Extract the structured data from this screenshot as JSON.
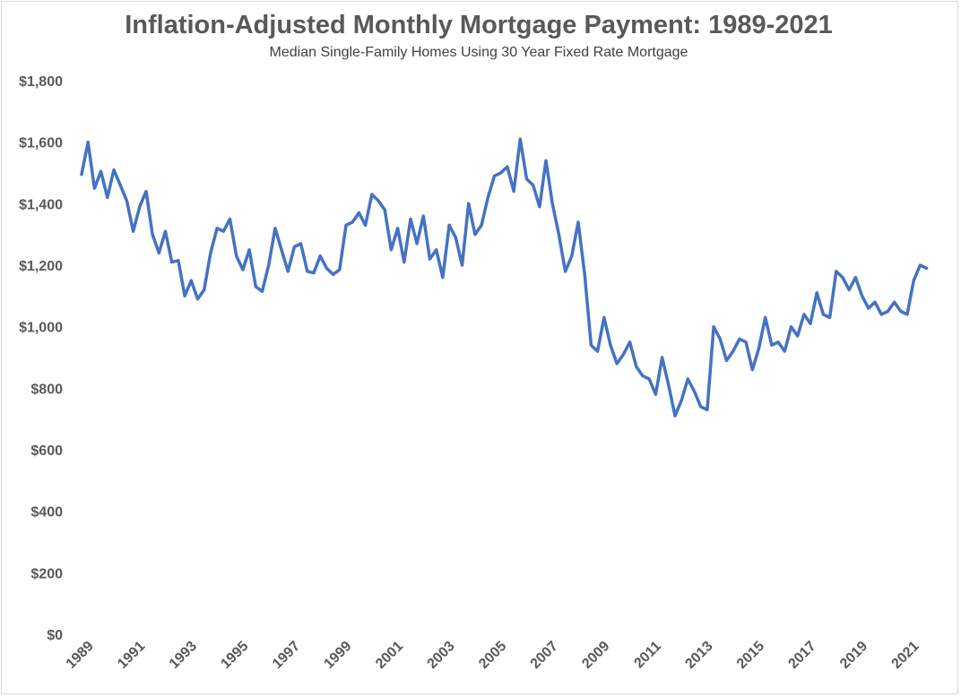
{
  "chart_data": {
    "type": "line",
    "title": "Inflation-Adjusted Monthly Mortgage Payment: 1989-2021",
    "subtitle": "Median Single-Family Homes Using 30 Year Fixed Rate Mortgage",
    "xlabel": "",
    "ylabel": "",
    "xlim": [
      1989.0,
      2021.8
    ],
    "ylim": [
      0,
      1800
    ],
    "y_ticks": [
      0,
      200,
      400,
      600,
      800,
      1000,
      1200,
      1400,
      1600,
      1800
    ],
    "y_tick_labels": [
      "$0",
      "$200",
      "$400",
      "$600",
      "$800",
      "$1,000",
      "$1,200",
      "$1,400",
      "$1,600",
      "$1,800"
    ],
    "x_tick_labels": [
      "1989",
      "1991",
      "1993",
      "1995",
      "1997",
      "1999",
      "2001",
      "2003",
      "2005",
      "2007",
      "2009",
      "2011",
      "2013",
      "2015",
      "2017",
      "2019",
      "2021"
    ],
    "grid": false,
    "legend": "none",
    "line_color": "#4472c4",
    "series": [
      {
        "x": [
          1989.0,
          1989.25,
          1989.5,
          1989.75,
          1990.0,
          1990.25,
          1990.5,
          1990.75,
          1991.0,
          1991.25,
          1991.5,
          1991.75,
          1992.0,
          1992.25,
          1992.5,
          1992.75,
          1993.0,
          1993.25,
          1993.5,
          1993.75,
          1994.0,
          1994.25,
          1994.5,
          1994.75,
          1995.0,
          1995.25,
          1995.5,
          1995.75,
          1996.0,
          1996.25,
          1996.5,
          1996.75,
          1997.0,
          1997.25,
          1997.5,
          1997.75,
          1998.0,
          1998.25,
          1998.5,
          1998.75,
          1999.0,
          1999.25,
          1999.5,
          1999.75,
          2000.0,
          2000.25,
          2000.5,
          2000.75,
          2001.0,
          2001.25,
          2001.5,
          2001.75,
          2002.0,
          2002.25,
          2002.5,
          2002.75,
          2003.0,
          2003.25,
          2003.5,
          2003.75,
          2004.0,
          2004.25,
          2004.5,
          2004.75,
          2005.0,
          2005.25,
          2005.5,
          2005.75,
          2006.0,
          2006.25,
          2006.5,
          2006.75,
          2007.0,
          2007.25,
          2007.5,
          2007.75,
          2008.0,
          2008.25,
          2008.5,
          2008.75,
          2009.0,
          2009.25,
          2009.5,
          2009.75,
          2010.0,
          2010.25,
          2010.5,
          2010.75,
          2011.0,
          2011.25,
          2011.5,
          2011.75,
          2012.0,
          2012.25,
          2012.5,
          2012.75,
          2013.0,
          2013.25,
          2013.5,
          2013.75,
          2014.0,
          2014.25,
          2014.5,
          2014.75,
          2015.0,
          2015.25,
          2015.5,
          2015.75,
          2016.0,
          2016.25,
          2016.5,
          2016.75,
          2017.0,
          2017.25,
          2017.5,
          2017.75,
          2018.0,
          2018.25,
          2018.5,
          2018.75,
          2019.0,
          2019.25,
          2019.5,
          2019.75,
          2020.0,
          2020.25,
          2020.5,
          2020.75,
          2021.0,
          2021.25,
          2021.5,
          2021.75
        ],
        "values": [
          1495,
          1600,
          1450,
          1505,
          1420,
          1510,
          1460,
          1410,
          1310,
          1390,
          1440,
          1300,
          1240,
          1310,
          1210,
          1215,
          1100,
          1150,
          1090,
          1120,
          1240,
          1320,
          1310,
          1350,
          1230,
          1185,
          1250,
          1130,
          1115,
          1200,
          1320,
          1250,
          1180,
          1260,
          1270,
          1180,
          1175,
          1230,
          1190,
          1170,
          1185,
          1330,
          1340,
          1370,
          1330,
          1430,
          1410,
          1380,
          1250,
          1320,
          1210,
          1350,
          1270,
          1360,
          1220,
          1250,
          1160,
          1330,
          1290,
          1200,
          1400,
          1300,
          1330,
          1420,
          1490,
          1500,
          1520,
          1440,
          1610,
          1480,
          1460,
          1390,
          1540,
          1400,
          1300,
          1180,
          1230,
          1340,
          1170,
          940,
          920,
          1030,
          940,
          880,
          910,
          950,
          870,
          840,
          830,
          780,
          900,
          810,
          710,
          760,
          830,
          790,
          740,
          730,
          1000,
          960,
          890,
          920,
          960,
          950,
          860,
          930,
          1030,
          940,
          950,
          920,
          1000,
          970,
          1040,
          1010,
          1110,
          1040,
          1030,
          1180,
          1160,
          1120,
          1160,
          1100,
          1060,
          1080,
          1040,
          1050,
          1080,
          1050,
          1040,
          1150,
          1200,
          1190
        ]
      }
    ]
  }
}
